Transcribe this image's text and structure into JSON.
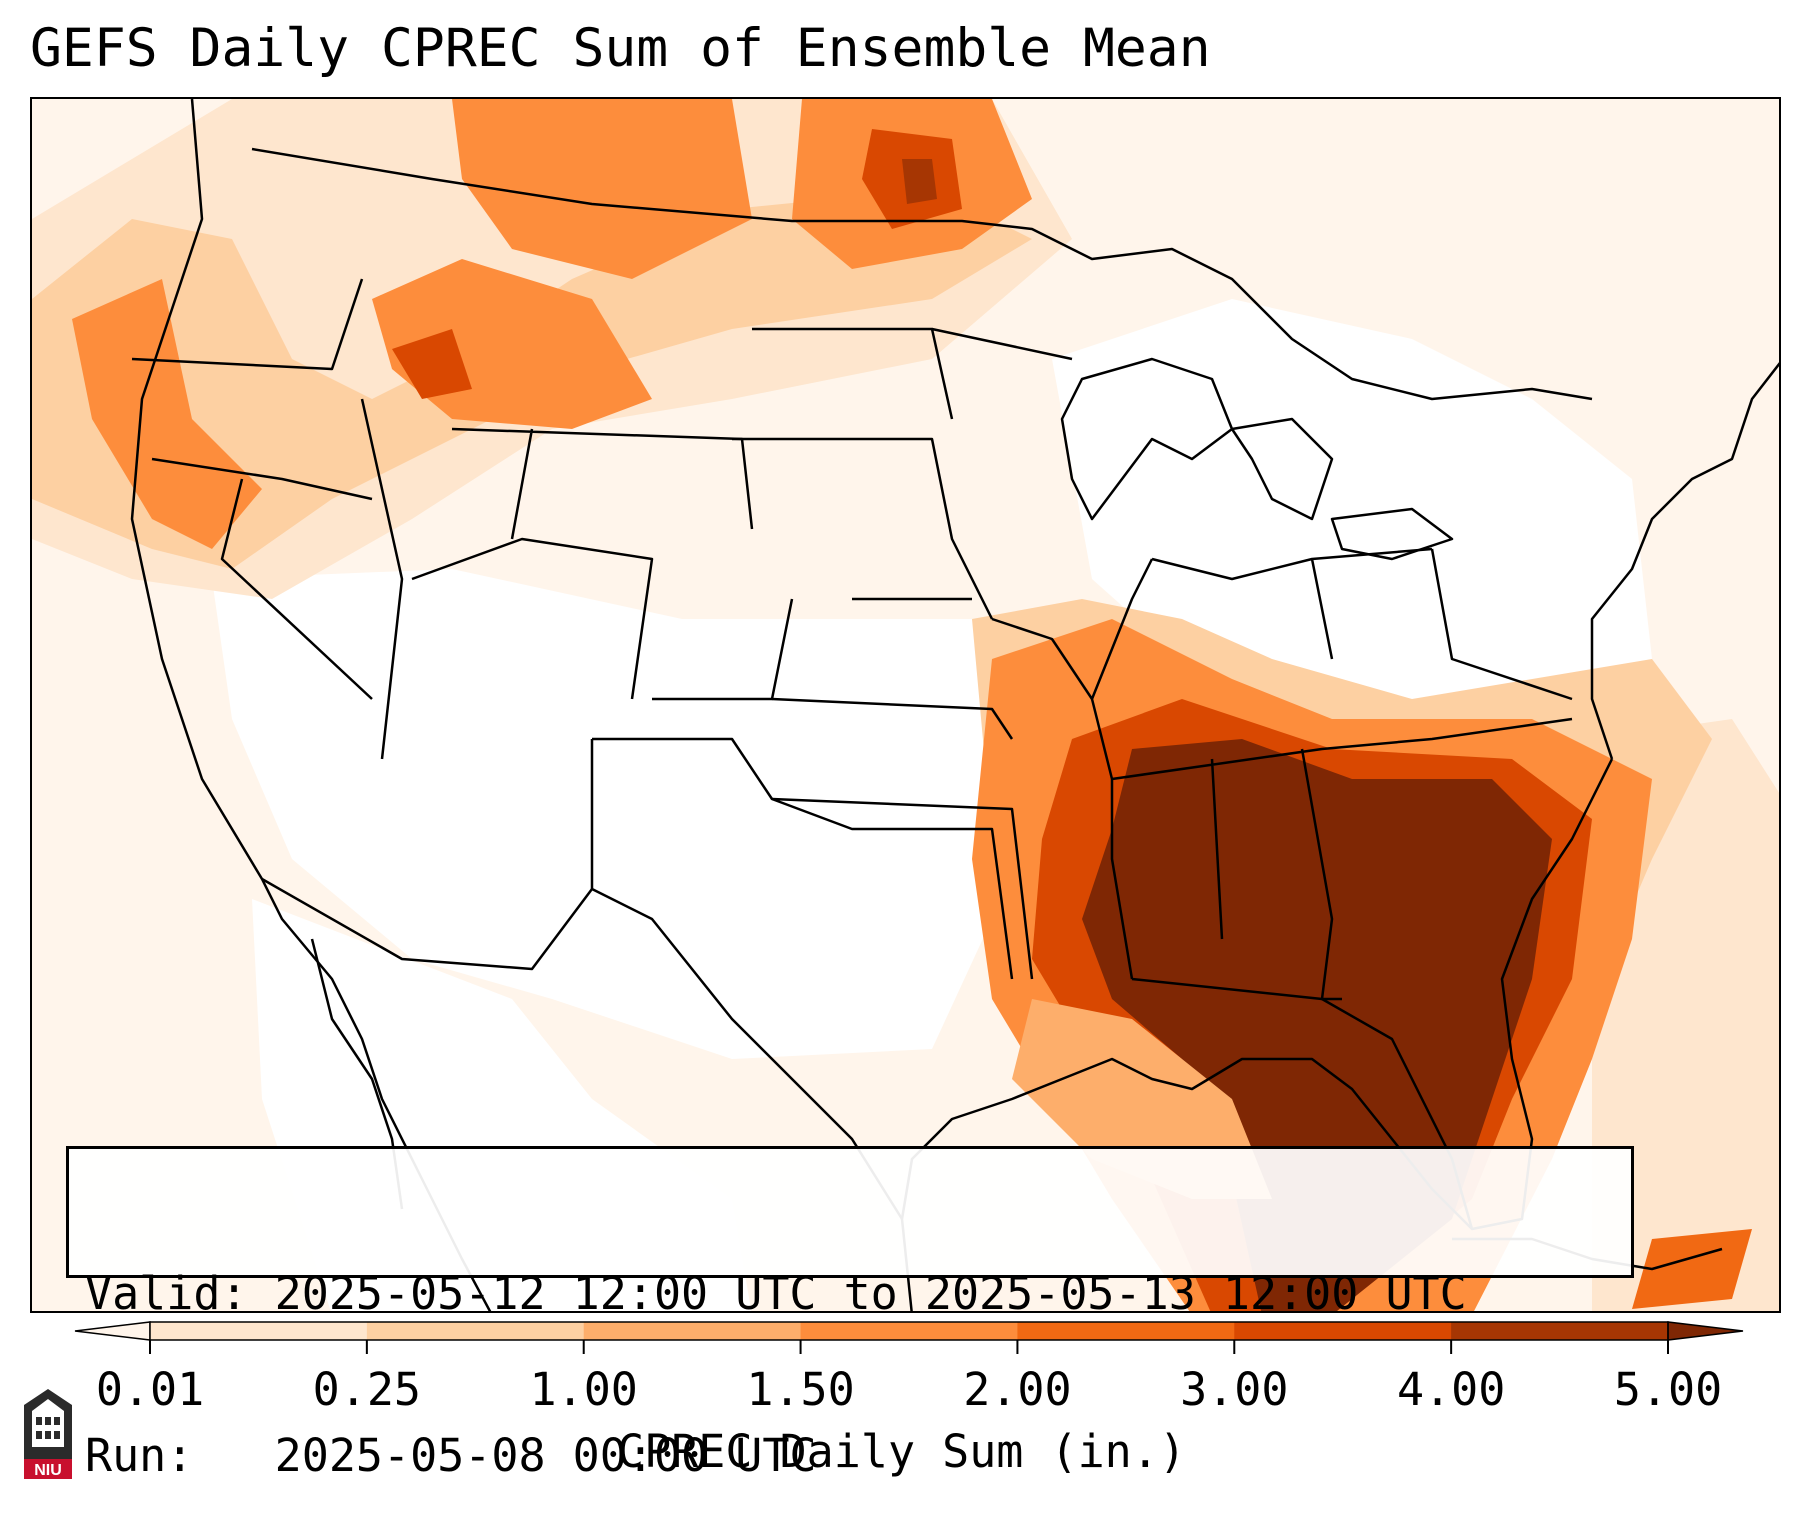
{
  "title": "GEFS Daily CPREC Sum of Ensemble Mean",
  "info": {
    "valid_label": "Valid:",
    "valid_value": "2025-05-12 12:00 UTC to 2025-05-13 12:00 UTC",
    "run_label": "Run:",
    "run_value": "2025-05-08 00:00 UTC"
  },
  "colorbar": {
    "label": "CPREC Daily Sum (in.)",
    "ticks": [
      "0.01",
      "0.25",
      "1.00",
      "1.50",
      "2.00",
      "3.00",
      "4.00",
      "5.00"
    ],
    "colors": [
      "#fff5eb",
      "#fee6ce",
      "#fdd0a2",
      "#fdae6b",
      "#fd8d3c",
      "#f16913",
      "#d94801",
      "#a63603",
      "#7f2704"
    ],
    "extend": "both"
  },
  "logo": {
    "text": "NIU",
    "color": "#c8102e"
  },
  "map": {
    "region": "Contiguous United States, northern Mexico, Gulf of Mexico",
    "heaviest_precip": "Southeast US: Mississippi, Alabama, Georgia, South Carolina, Florida",
    "secondary_precip": "Pacific Northwest, northern Rockies, northern Plains"
  }
}
